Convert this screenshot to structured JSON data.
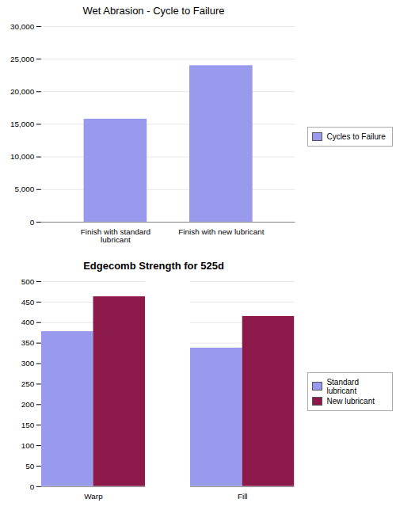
{
  "chart_data": [
    {
      "type": "bar",
      "title": "Wet Abrasion - Cycle to Failure",
      "categories": [
        "Finish with standard lubricant",
        "Finish with new lubricant"
      ],
      "series": [
        {
          "name": "Cycles to Failure",
          "color": "#9999ee",
          "values": [
            15800,
            24000
          ]
        }
      ],
      "ylim": [
        0,
        30000
      ],
      "yticks": [
        0,
        {
          "value": 5000,
          "label": "5,000"
        },
        {
          "value": 10000,
          "label": "10,000"
        },
        {
          "value": 15000,
          "label": "15,000"
        },
        {
          "value": 20000,
          "label": "20,000"
        },
        {
          "value": 25000,
          "label": "25,000"
        },
        {
          "value": 30000,
          "label": "30,000"
        }
      ],
      "grid": true,
      "legend": "right"
    },
    {
      "type": "bar",
      "title": "Edgecomb Strength for 525d",
      "categories": [
        "Warp",
        "Fill"
      ],
      "series": [
        {
          "name": "Standard lubricant",
          "color": "#9999ee",
          "values": [
            378,
            338
          ]
        },
        {
          "name": "New lubricant",
          "color": "#8b1a4a",
          "values": [
            463,
            415
          ]
        }
      ],
      "ylim": [
        0,
        500
      ],
      "yticks": [
        0,
        50,
        100,
        150,
        200,
        250,
        300,
        350,
        400,
        450,
        500
      ],
      "grid": true,
      "legend": "right"
    }
  ]
}
